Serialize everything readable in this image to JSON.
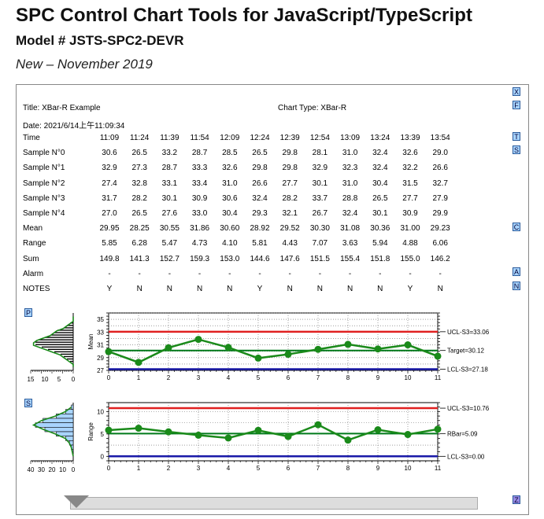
{
  "page": {
    "title": "SPC Control Chart Tools for JavaScript/TypeScript",
    "model": "Model # JSTS-SPC2-DEVR",
    "release": "New – November 2019"
  },
  "header": {
    "title_label": "Title: XBar-R Example",
    "chart_type_label": "Chart Type: XBar-R",
    "date_label": "Date: 2021/6/14上午11:09:34"
  },
  "table": {
    "row_labels": [
      "Time",
      "Sample N°0",
      "Sample N°1",
      "Sample N°2",
      "Sample N°3",
      "Sample N°4",
      "Mean",
      "Range",
      "Sum",
      "Alarm",
      "NOTES"
    ],
    "columns": [
      [
        "11:09",
        "30.6",
        "32.9",
        "27.4",
        "31.7",
        "27.0",
        "29.95",
        "5.85",
        "149.8",
        "-",
        "Y"
      ],
      [
        "11:24",
        "26.5",
        "27.3",
        "32.8",
        "28.2",
        "26.5",
        "28.25",
        "6.28",
        "141.3",
        "-",
        "N"
      ],
      [
        "11:39",
        "33.2",
        "28.7",
        "33.1",
        "30.1",
        "27.6",
        "30.55",
        "5.47",
        "152.7",
        "-",
        "N"
      ],
      [
        "11:54",
        "28.7",
        "33.3",
        "33.4",
        "30.9",
        "33.0",
        "31.86",
        "4.73",
        "159.3",
        "-",
        "N"
      ],
      [
        "12:09",
        "28.5",
        "32.6",
        "31.0",
        "30.6",
        "30.4",
        "30.60",
        "4.10",
        "153.0",
        "-",
        "N"
      ],
      [
        "12:24",
        "26.5",
        "29.8",
        "26.6",
        "32.4",
        "29.3",
        "28.92",
        "5.81",
        "144.6",
        "-",
        "Y"
      ],
      [
        "12:39",
        "29.8",
        "29.8",
        "27.7",
        "28.2",
        "32.1",
        "29.52",
        "4.43",
        "147.6",
        "-",
        "N"
      ],
      [
        "12:54",
        "28.1",
        "32.9",
        "30.1",
        "33.7",
        "26.7",
        "30.30",
        "7.07",
        "151.5",
        "-",
        "N"
      ],
      [
        "13:09",
        "31.0",
        "32.3",
        "31.0",
        "28.8",
        "32.4",
        "31.08",
        "3.63",
        "155.4",
        "-",
        "N"
      ],
      [
        "13:24",
        "32.4",
        "32.4",
        "30.4",
        "26.5",
        "30.1",
        "30.36",
        "5.94",
        "151.8",
        "-",
        "N"
      ],
      [
        "13:39",
        "32.6",
        "32.2",
        "31.5",
        "27.7",
        "30.9",
        "31.00",
        "4.88",
        "155.0",
        "-",
        "Y"
      ],
      [
        "13:54",
        "29.0",
        "26.6",
        "32.7",
        "27.9",
        "29.9",
        "29.23",
        "6.06",
        "146.2",
        "-",
        "N"
      ]
    ]
  },
  "buttons": {
    "x": "X",
    "f": "F",
    "t": "T",
    "s_top": "S",
    "c": "C",
    "a": "A",
    "n": "N",
    "p": "P",
    "s_bottom": "S",
    "z": "Z"
  },
  "colors": {
    "ucl": "#e02020",
    "lcl": "#1a1aa8",
    "target": "#007a1a",
    "data": "#1a8a1a",
    "histogram": "#a8d4ff"
  },
  "chart_data": [
    {
      "type": "line",
      "ylabel": "Mean",
      "x": [
        0,
        1,
        2,
        3,
        4,
        5,
        6,
        7,
        8,
        9,
        10,
        11
      ],
      "values": [
        29.95,
        28.25,
        30.55,
        31.86,
        30.6,
        28.92,
        29.52,
        30.3,
        31.08,
        30.36,
        31.0,
        29.23
      ],
      "ylim": [
        27,
        36
      ],
      "xlim": [
        0,
        11
      ],
      "y_ticks": [
        "27",
        "29",
        "31",
        "33",
        "35"
      ],
      "x_ticks": [
        "0",
        "1",
        "2",
        "3",
        "4",
        "5",
        "6",
        "7",
        "8",
        "9",
        "10",
        "11"
      ],
      "ucl": 33.06,
      "target": 30.12,
      "lcl": 27.18,
      "ucl_label": "UCL-S3=33.06",
      "target_label": "Target=30.12",
      "lcl_label": "LCL-S3=27.18",
      "histogram_axis": [
        "15",
        "10",
        "5",
        "0"
      ]
    },
    {
      "type": "line",
      "ylabel": "Range",
      "x": [
        0,
        1,
        2,
        3,
        4,
        5,
        6,
        7,
        8,
        9,
        10,
        11
      ],
      "values": [
        5.85,
        6.28,
        5.47,
        4.73,
        4.1,
        5.81,
        4.43,
        7.07,
        3.63,
        5.94,
        4.88,
        6.06
      ],
      "ylim": [
        -1,
        12
      ],
      "xlim": [
        0,
        11
      ],
      "y_ticks": [
        "0",
        "5",
        "10"
      ],
      "x_ticks": [
        "0",
        "1",
        "2",
        "3",
        "4",
        "5",
        "6",
        "7",
        "8",
        "9",
        "10",
        "11"
      ],
      "ucl": 10.76,
      "target": 5.09,
      "lcl": 0.0,
      "ucl_label": "UCL-S3=10.76",
      "target_label": "RBar=5.09",
      "lcl_label": "LCL-S3=0.00",
      "histogram_axis": [
        "40",
        "30",
        "20",
        "10",
        "0"
      ]
    }
  ]
}
